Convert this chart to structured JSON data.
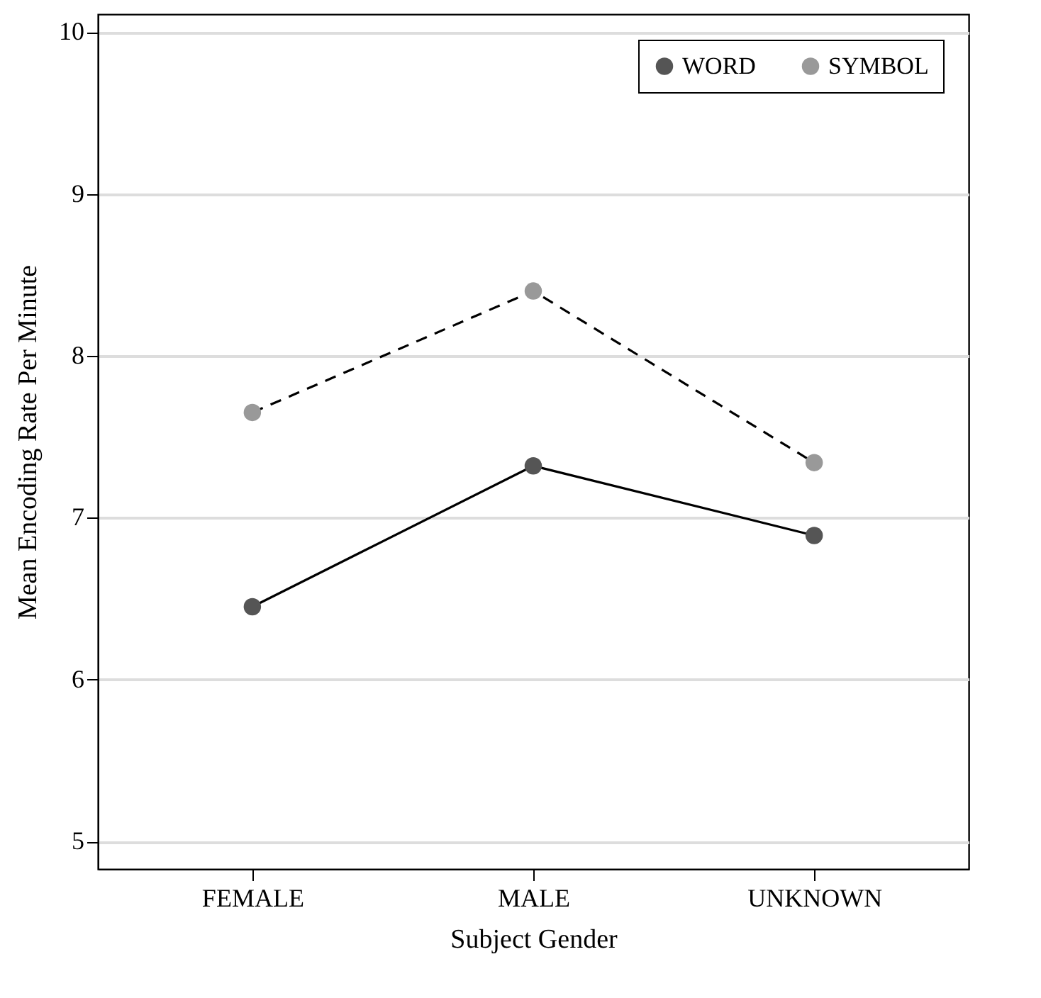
{
  "chart_data": {
    "type": "line",
    "xlabel": "Subject Gender",
    "ylabel": "Mean Encoding Rate Per Minute",
    "categories": [
      "FEMALE",
      "MALE",
      "UNKNOWN"
    ],
    "series": [
      {
        "name": "WORD",
        "color": "#555555",
        "line_style": "solid",
        "values": [
          6.45,
          7.32,
          6.89
        ]
      },
      {
        "name": "SYMBOL",
        "color": "#999999",
        "line_style": "dashed",
        "values": [
          7.65,
          8.4,
          7.34
        ]
      }
    ],
    "ylim": [
      4.83,
      10.11
    ],
    "yticks": [
      5,
      6,
      7,
      8,
      9,
      10
    ],
    "grid": "y",
    "legend": "top right",
    "marker": "circle"
  }
}
